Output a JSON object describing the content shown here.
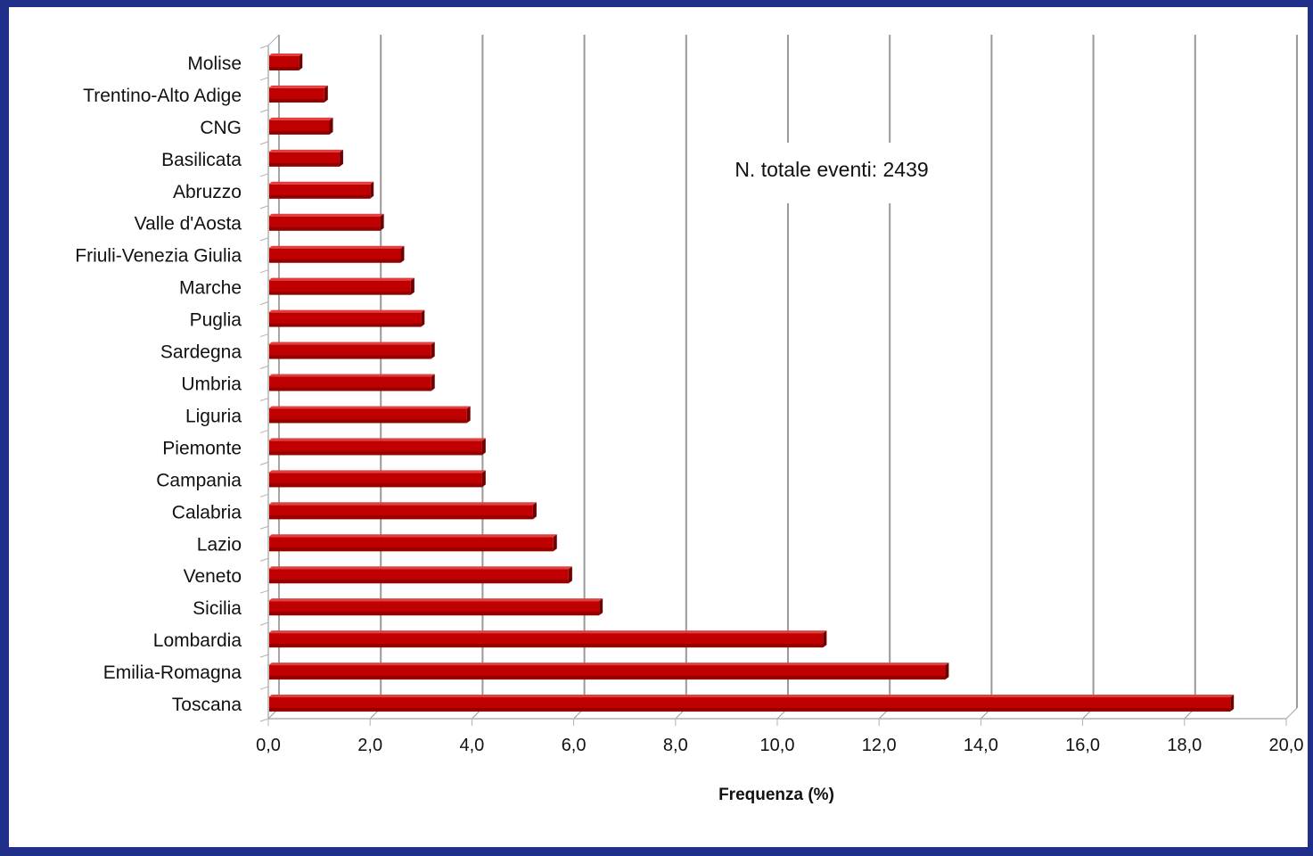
{
  "chart_data": {
    "type": "bar",
    "orientation": "horizontal",
    "categories": [
      "Molise",
      "Trentino-Alto Adige",
      "CNG",
      "Basilicata",
      "Abruzzo",
      "Valle d'Aosta",
      "Friuli-Venezia Giulia",
      "Marche",
      "Puglia",
      "Sardegna",
      "Umbria",
      "Liguria",
      "Piemonte",
      "Campania",
      "Calabria",
      "Lazio",
      "Veneto",
      "Sicilia",
      "Lombardia",
      "Emilia-Romagna",
      "Toscana"
    ],
    "values": [
      0.6,
      1.1,
      1.2,
      1.4,
      2.0,
      2.2,
      2.6,
      2.8,
      3.0,
      3.2,
      3.2,
      3.9,
      4.2,
      4.2,
      5.2,
      5.6,
      5.9,
      6.5,
      10.9,
      13.3,
      18.9
    ],
    "xlabel": "Frequenza (%)",
    "ylabel": "",
    "xlim": [
      0,
      20
    ],
    "xticks": [
      "0,0",
      "2,0",
      "4,0",
      "6,0",
      "8,0",
      "10,0",
      "12,0",
      "14,0",
      "16,0",
      "18,0",
      "20,0"
    ],
    "annotation": "N. totale eventi: 2439",
    "grid": true,
    "legend": "none",
    "colors": {
      "bar": "#c00000",
      "bar_shadow": "#6e0000",
      "grid": "#9a9a9a",
      "frame": "#1f2f8a"
    }
  }
}
